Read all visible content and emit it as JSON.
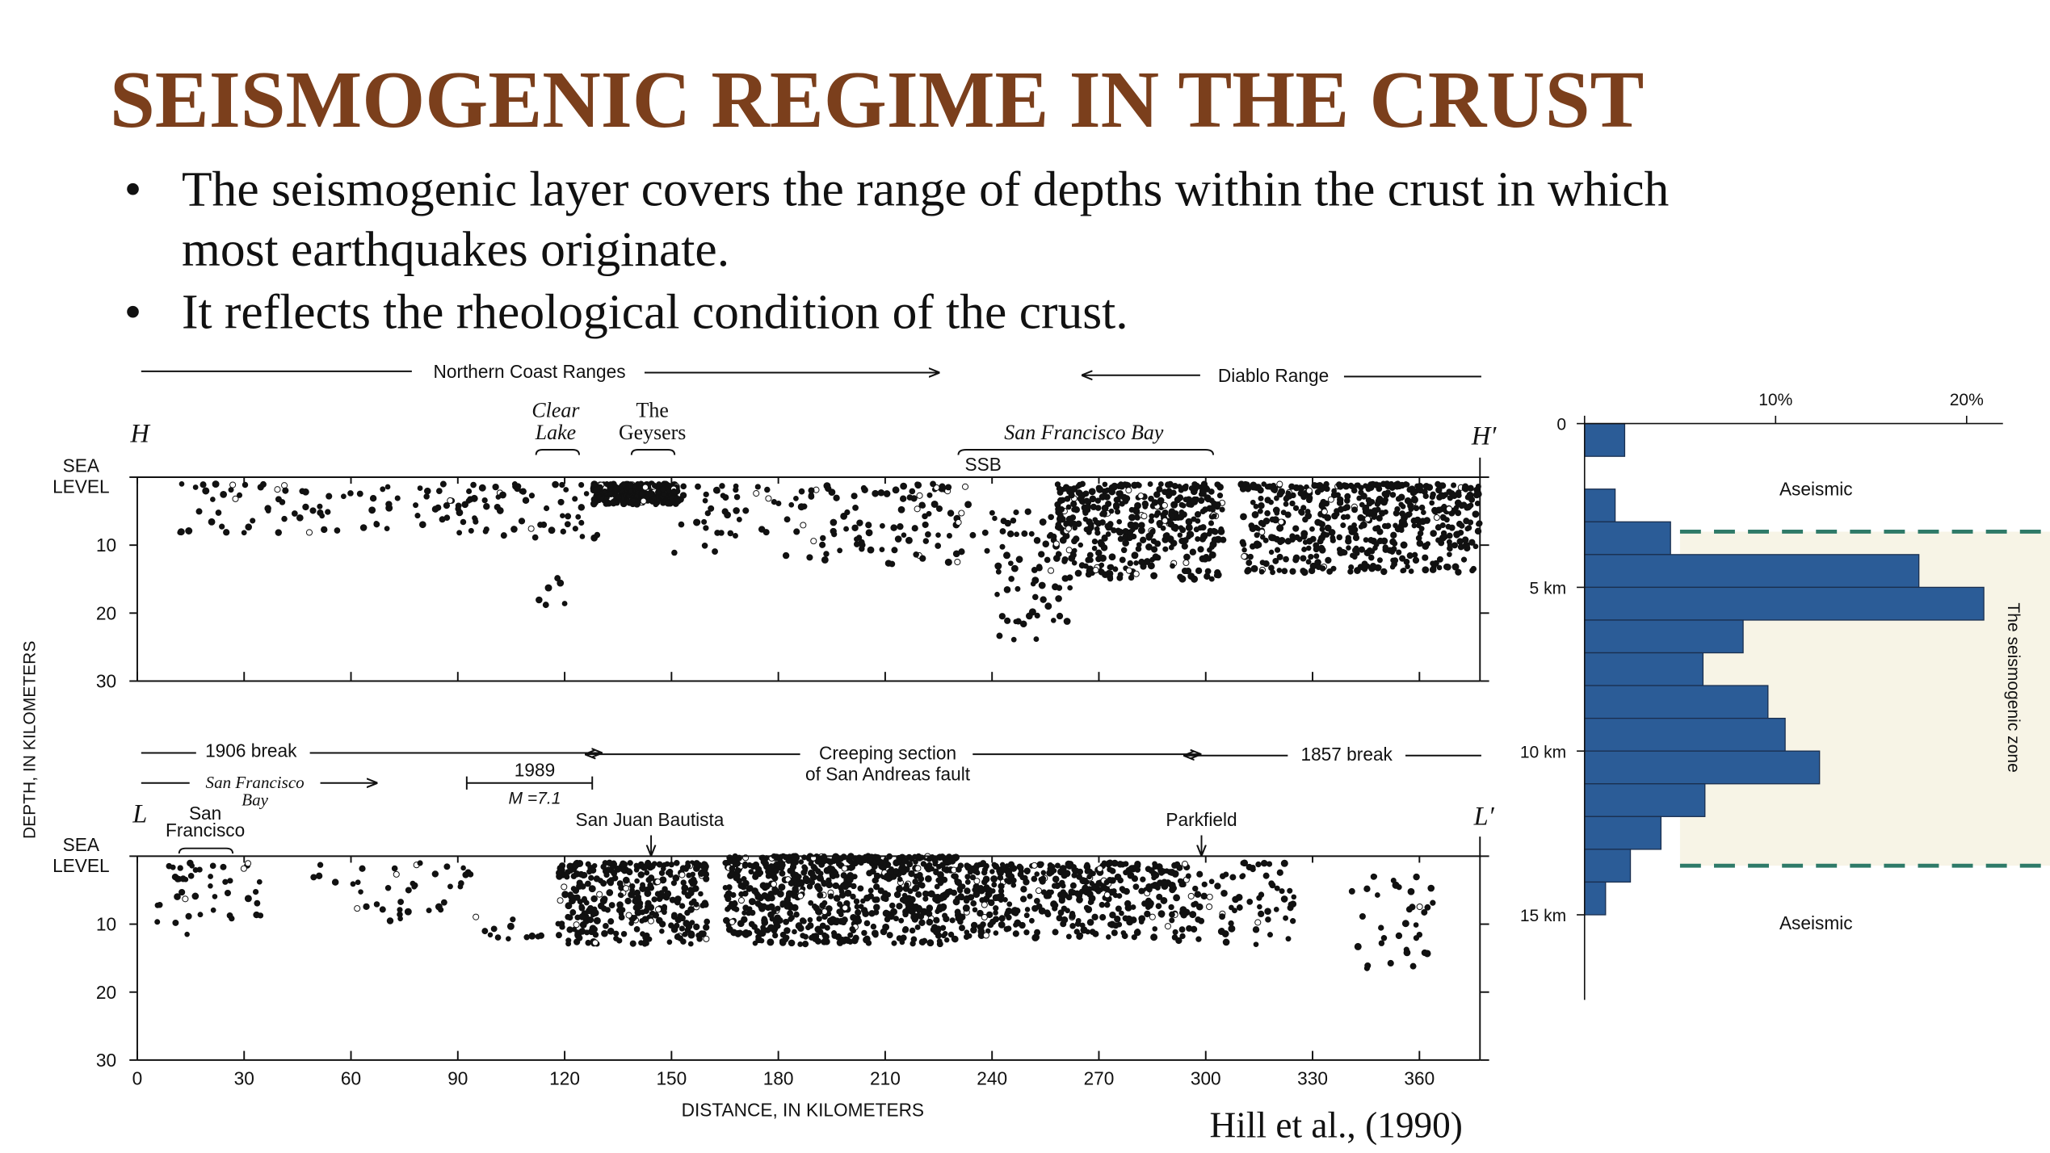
{
  "title": "SEISMOGENIC REGIME IN THE CRUST",
  "bullets": [
    "The seismogenic layer covers the range of depths within the crust in which most earthquakes originate.",
    "It reflects the rheological condition of the crust."
  ],
  "figure": {
    "y_axis_label": "DEPTH, IN KILOMETERS",
    "x_axis_label": "DISTANCE, IN KILOMETERS",
    "xlim": [
      0,
      377
    ],
    "xticks": [
      0,
      30,
      60,
      90,
      120,
      150,
      180,
      210,
      240,
      270,
      300,
      330,
      360
    ],
    "ylim": [
      0,
      30
    ],
    "yticks": [
      {
        "value": 0,
        "label": "SEA LEVEL"
      },
      10,
      20,
      30
    ],
    "sections": [
      {
        "start": "H",
        "end": "H′",
        "annotations": [
          "Northern Coast Ranges",
          "Diablo Range",
          "Clear\nLake",
          "The\nGeysers",
          "San Francisco Bay",
          "SSB"
        ]
      },
      {
        "start": "L",
        "end": "L′",
        "annotations": [
          "1906 break",
          "San Francisco\nBay",
          "1989",
          "M =7.1",
          "Creeping section\nof San Andreas fault",
          "1857 break",
          "San\nFrancisco",
          "San Juan Bautista",
          "Parkfield"
        ]
      }
    ]
  },
  "chart_data": {
    "type": "histogram",
    "orientation": "horizontal",
    "bins": [
      0,
      1,
      2,
      3,
      4,
      5,
      6,
      7,
      8,
      9,
      10,
      11,
      12,
      13,
      14,
      15
    ],
    "values": [
      2.1,
      0,
      1.6,
      4.5,
      17.5,
      20.9,
      8.3,
      6.2,
      9.6,
      10.5,
      12.3,
      6.3,
      4.0,
      2.4,
      1.1
    ],
    "color": "#2b5c97",
    "xlim": [
      0,
      21.9
    ],
    "xticks": [
      {
        "value": 10,
        "label": "10%"
      },
      {
        "value": 20,
        "label": "20%"
      }
    ],
    "ylim": [
      0,
      17.6
    ],
    "yticks": [
      0,
      {
        "value": 5,
        "label": "5 km"
      },
      {
        "value": 10,
        "label": "10 km"
      },
      {
        "value": 15,
        "label": "15 km"
      }
    ],
    "zone": [
      3.3,
      13.5
    ],
    "zone_label": "The seismogenic zone",
    "annotations": [
      "Aseismic",
      "Aseismic"
    ]
  },
  "citation": "Hill et al., (1990)"
}
